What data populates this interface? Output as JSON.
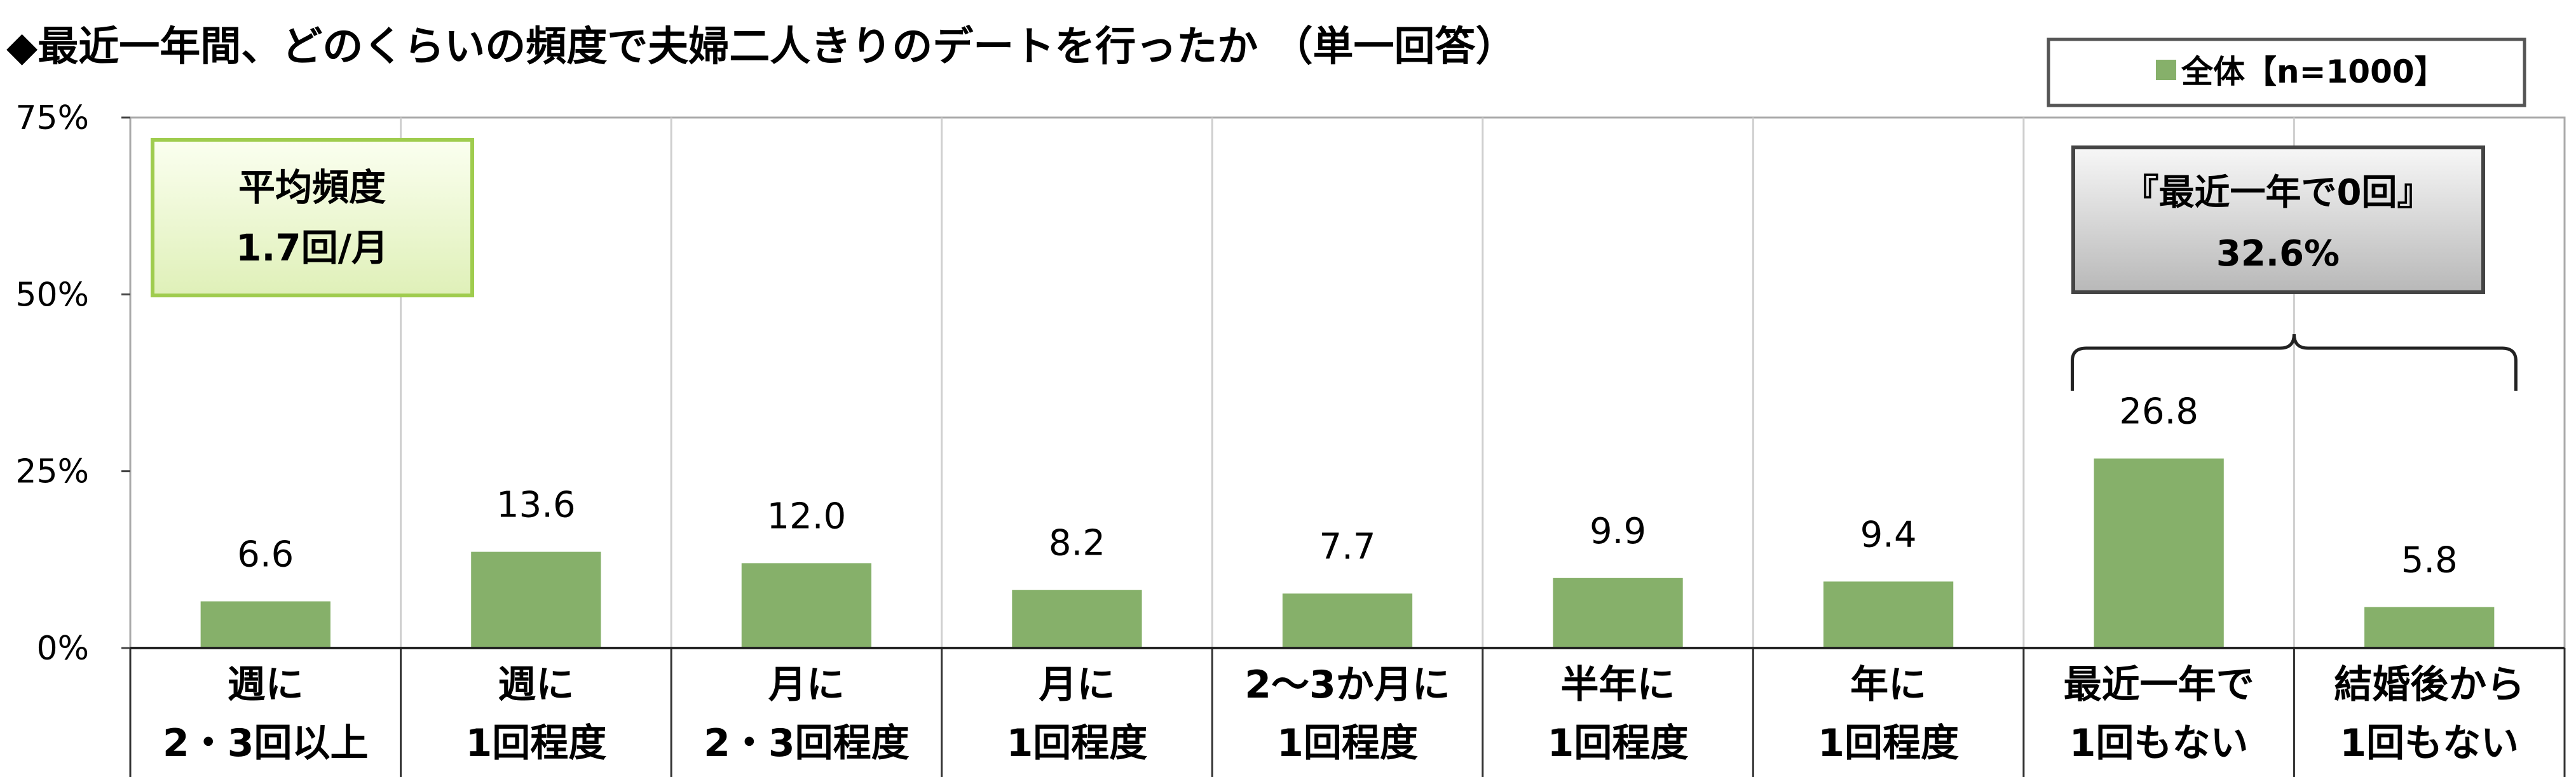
{
  "chart_data": {
    "type": "bar",
    "title": "◆最近一年間、どのくらいの頻度で夫婦二人きりのデートを行ったか （単一回答）",
    "categories": [
      [
        "週に",
        "2・3回以上"
      ],
      [
        "週に",
        "1回程度"
      ],
      [
        "月に",
        "2・3回程度"
      ],
      [
        "月に",
        "1回程度"
      ],
      [
        "2～3か月に",
        "1回程度"
      ],
      [
        "半年に",
        "1回程度"
      ],
      [
        "年に",
        "1回程度"
      ],
      [
        "最近一年で",
        "1回もない"
      ],
      [
        "結婚後から",
        "1回もない"
      ]
    ],
    "series": [
      {
        "name": "全体【n=1000】",
        "values": [
          6.6,
          13.6,
          12.0,
          8.2,
          7.7,
          9.9,
          9.4,
          26.8,
          5.8
        ]
      }
    ],
    "value_labels": [
      "6.6",
      "13.6",
      "12.0",
      "8.2",
      "7.7",
      "9.9",
      "9.4",
      "26.8",
      "5.8"
    ],
    "ylim": [
      0,
      75
    ],
    "yticks": [
      0,
      25,
      50,
      75
    ],
    "ytick_labels": [
      "0%",
      "25%",
      "50%",
      "75%"
    ],
    "grid": "vertical-separators",
    "legend_placement": "top-right",
    "bar_color": "#86b06a",
    "average_box": {
      "line1": "平均頻度",
      "line2": "1.7回/月",
      "color": "#ecf7d0"
    },
    "callout": {
      "line1": "『最近一年で0回』",
      "line2": "32.6%",
      "bracket_categories": [
        7,
        8
      ]
    }
  }
}
